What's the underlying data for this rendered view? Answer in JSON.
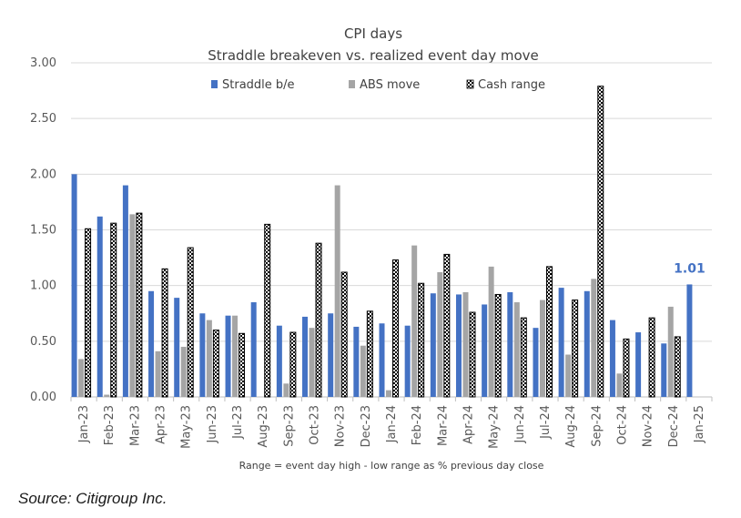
{
  "chart_data": {
    "type": "bar",
    "title": "CPI days",
    "subtitle": "Straddle breakeven vs. realized event day move",
    "categories": [
      "Jan-23",
      "Feb-23",
      "Mar-23",
      "Apr-23",
      "May-23",
      "Jun-23",
      "Jul-23",
      "Aug-23",
      "Sep-23",
      "Oct-23",
      "Nov-23",
      "Dec-23",
      "Jan-24",
      "Feb-24",
      "Mar-24",
      "Apr-24",
      "May-24",
      "Jun-24",
      "Jul-24",
      "Aug-24",
      "Sep-24",
      "Oct-24",
      "Nov-24",
      "Dec-24",
      "Jan-25"
    ],
    "series": [
      {
        "name": "Straddle b/e",
        "color": "#4472c4",
        "values": [
          2.0,
          1.62,
          1.9,
          0.95,
          0.89,
          0.75,
          0.73,
          0.85,
          0.64,
          0.72,
          0.75,
          0.63,
          0.66,
          0.64,
          0.93,
          0.92,
          0.83,
          0.94,
          0.62,
          0.98,
          0.95,
          0.69,
          0.58,
          0.48,
          1.01
        ]
      },
      {
        "name": "ABS move",
        "color": "#a5a5a5",
        "values": [
          0.34,
          0.02,
          1.64,
          0.41,
          0.45,
          0.69,
          0.73,
          0.0,
          0.12,
          0.62,
          1.9,
          0.46,
          0.06,
          1.36,
          1.12,
          0.94,
          1.17,
          0.85,
          0.87,
          0.38,
          1.06,
          0.21,
          0.0,
          0.81,
          null
        ]
      },
      {
        "name": "Cash range",
        "pattern": "checker",
        "values": [
          1.51,
          1.56,
          1.65,
          1.15,
          1.34,
          0.6,
          0.57,
          1.55,
          0.58,
          1.38,
          1.12,
          0.77,
          1.23,
          1.02,
          1.28,
          0.76,
          0.92,
          0.71,
          1.17,
          0.87,
          2.79,
          0.52,
          0.71,
          0.54,
          null
        ]
      }
    ],
    "ylim": [
      0,
      3
    ],
    "yticks": [
      "0.00",
      "0.50",
      "1.00",
      "1.50",
      "2.00",
      "2.50",
      "3.00"
    ],
    "grid": true,
    "legend": "top",
    "callout": {
      "label": "1.01",
      "category": "Jan-25"
    },
    "footnote": "Range = event day high - low range as % previous day close"
  },
  "source": "Source: Citigroup Inc."
}
